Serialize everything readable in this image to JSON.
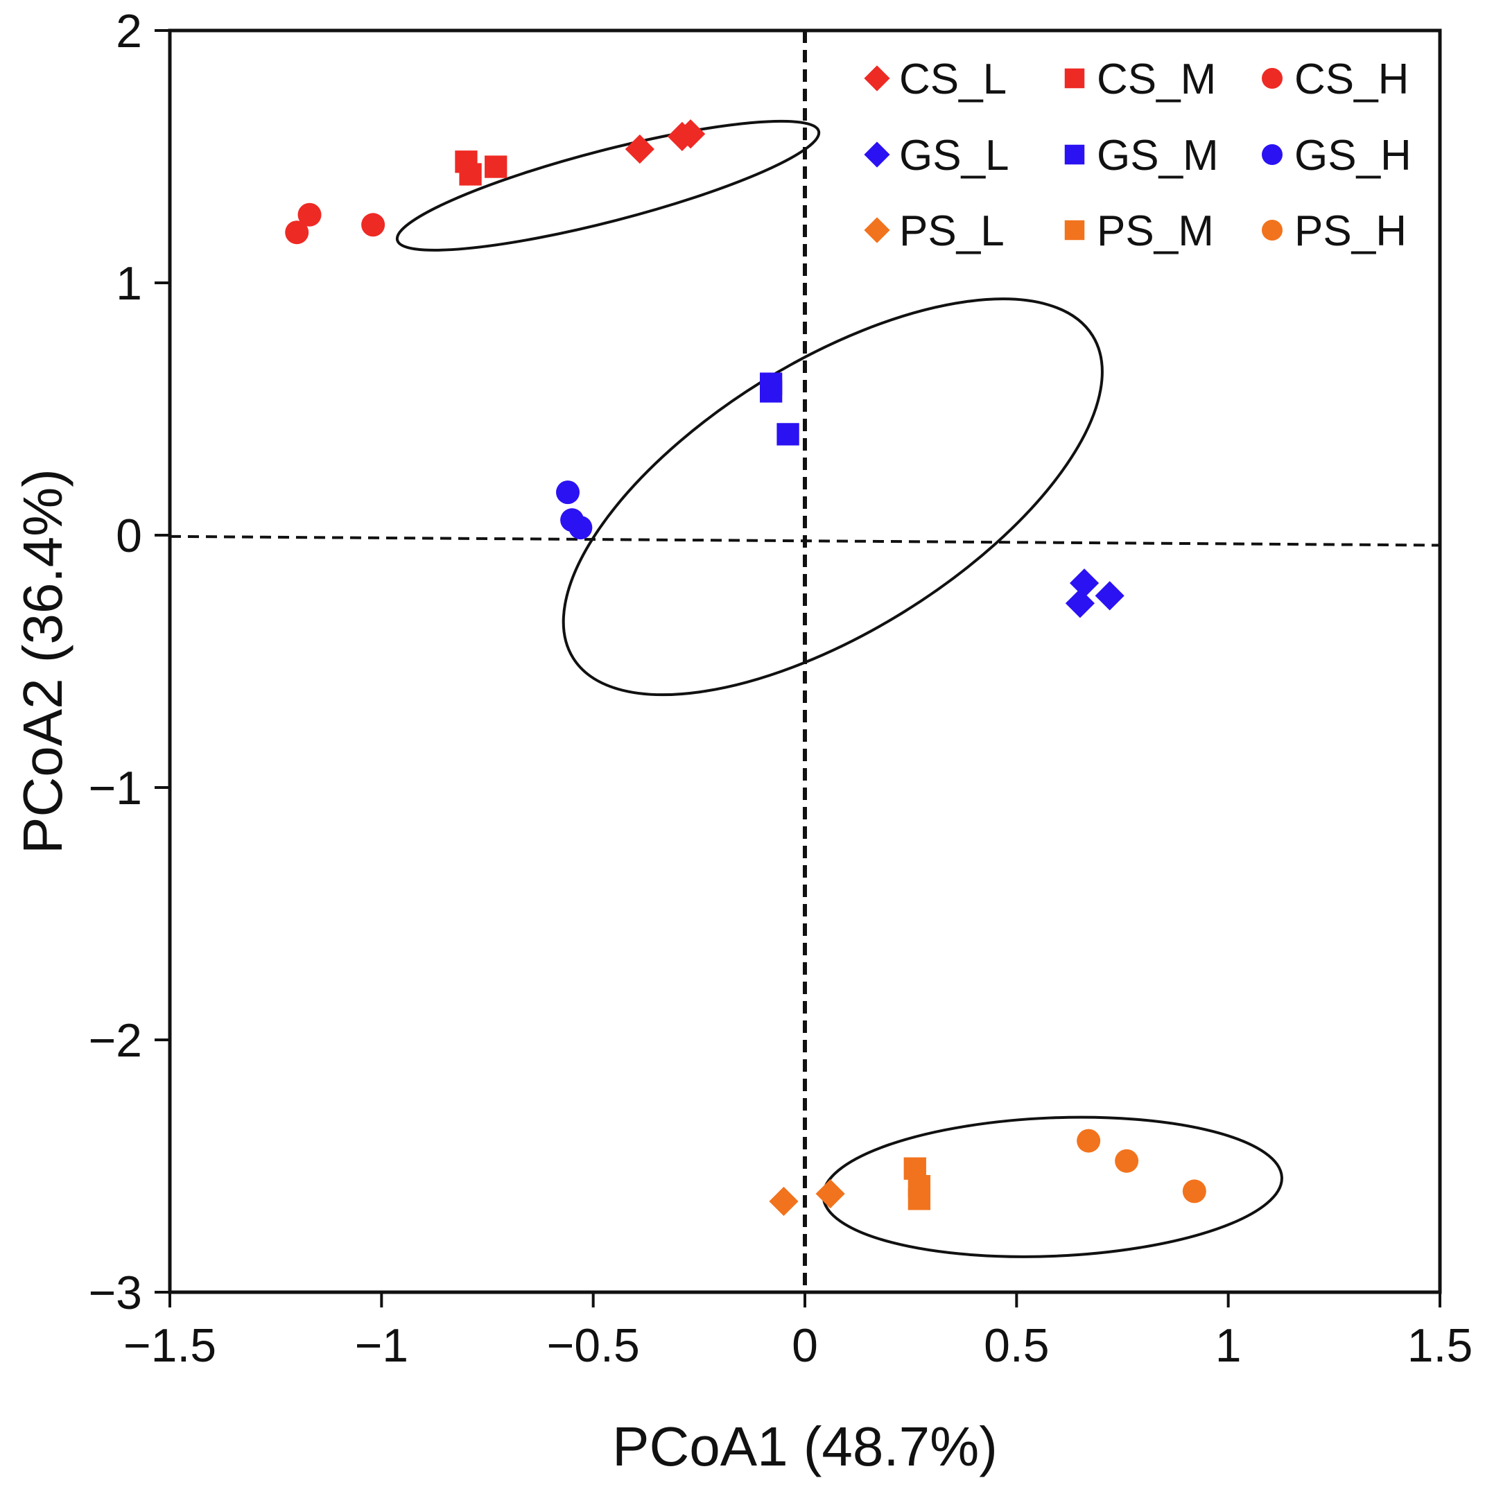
{
  "chart_data": {
    "type": "scatter",
    "xlabel": "PCoA1 (48.7%)",
    "ylabel": "PCoA2 (36.4%)",
    "xlim": [
      -1.5,
      1.5
    ],
    "ylim": [
      -3,
      2
    ],
    "xticks": [
      -1.5,
      -1,
      -0.5,
      0,
      0.5,
      1,
      1.5
    ],
    "xtick_labels": [
      "−1.5",
      "−1",
      "−0.5",
      "0",
      "0.5",
      "1",
      "1.5"
    ],
    "yticks": [
      -3,
      -2,
      -1,
      0,
      1,
      2
    ],
    "ytick_labels": [
      "−3",
      "−2",
      "−1",
      "0",
      "1",
      "2"
    ],
    "grid": false,
    "legend_position": "top-right",
    "colors": {
      "CS": "#ee2a24",
      "GS": "#2b12f2",
      "PS": "#f2731d"
    },
    "reference_lines": [
      {
        "name": "vertical-dashed-line",
        "points": [
          [
            0,
            2
          ],
          [
            0,
            -3
          ]
        ]
      },
      {
        "name": "horizontal-dashed-line",
        "points": [
          [
            -1.5,
            -0.005
          ],
          [
            1.5,
            -0.04
          ]
        ]
      }
    ],
    "ellipses": [
      {
        "group": "CS",
        "center": [
          -0.465,
          1.385
        ],
        "radii": [
          0.514,
          0.141
        ],
        "rotation_deg": 14.5
      },
      {
        "group": "GS",
        "center": [
          0.066,
          0.152
        ],
        "radii": [
          0.722,
          0.536
        ],
        "rotation_deg": 31.8
      },
      {
        "group": "PS",
        "center": [
          0.585,
          -2.583
        ],
        "radii": [
          0.542,
          0.274
        ],
        "rotation_deg": 2.4
      }
    ],
    "series": [
      {
        "name": "CS_L",
        "group": "CS",
        "marker": "diamond",
        "points": [
          [
            -0.39,
            1.53
          ],
          [
            -0.29,
            1.58
          ],
          [
            -0.27,
            1.59
          ]
        ]
      },
      {
        "name": "CS_M",
        "group": "CS",
        "marker": "square",
        "points": [
          [
            -0.8,
            1.48
          ],
          [
            -0.79,
            1.43
          ],
          [
            -0.73,
            1.46
          ]
        ]
      },
      {
        "name": "CS_H",
        "group": "CS",
        "marker": "circle",
        "points": [
          [
            -1.2,
            1.2
          ],
          [
            -1.17,
            1.27
          ],
          [
            -1.02,
            1.23
          ]
        ]
      },
      {
        "name": "GS_L",
        "group": "GS",
        "marker": "diamond",
        "points": [
          [
            0.66,
            -0.19
          ],
          [
            0.72,
            -0.24
          ],
          [
            0.65,
            -0.27
          ]
        ]
      },
      {
        "name": "GS_M",
        "group": "GS",
        "marker": "square",
        "points": [
          [
            -0.08,
            0.6
          ],
          [
            -0.08,
            0.57
          ],
          [
            -0.04,
            0.4
          ]
        ]
      },
      {
        "name": "GS_H",
        "group": "GS",
        "marker": "circle",
        "points": [
          [
            -0.56,
            0.17
          ],
          [
            -0.55,
            0.06
          ],
          [
            -0.53,
            0.03
          ]
        ]
      },
      {
        "name": "PS_L",
        "group": "PS",
        "marker": "diamond",
        "points": [
          [
            -0.05,
            -2.64
          ],
          [
            0.06,
            -2.61
          ]
        ]
      },
      {
        "name": "PS_M",
        "group": "PS",
        "marker": "square",
        "points": [
          [
            0.26,
            -2.51
          ],
          [
            0.27,
            -2.58
          ],
          [
            0.27,
            -2.63
          ]
        ]
      },
      {
        "name": "PS_H",
        "group": "PS",
        "marker": "circle",
        "points": [
          [
            0.67,
            -2.4
          ],
          [
            0.76,
            -2.48
          ],
          [
            0.92,
            -2.6
          ]
        ]
      }
    ]
  }
}
